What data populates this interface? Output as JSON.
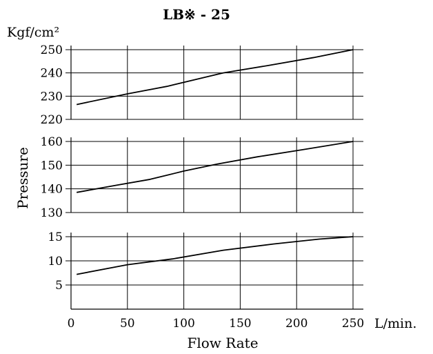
{
  "chart_data": {
    "type": "line",
    "title": "LB※ - 25",
    "y_unit": "Kgf/cm²",
    "ylabel": "Pressure",
    "xlabel": "Flow Rate",
    "x_unit": "L/min.",
    "xlim": [
      0,
      250
    ],
    "x_ticks": [
      0,
      50,
      100,
      150,
      200,
      250
    ],
    "grid": true,
    "panels": [
      {
        "ylim": [
          220,
          250
        ],
        "y_ticks": [
          220,
          230,
          240,
          250
        ],
        "series": [
          {
            "x": [
              5,
              50,
              85,
              135,
              175,
              215,
              250
            ],
            "y": [
              226.4,
              231,
              234.2,
              240,
              243.2,
              246.6,
              250
            ]
          }
        ]
      },
      {
        "ylim": [
          130,
          160
        ],
        "y_ticks": [
          130,
          140,
          150,
          160
        ],
        "series": [
          {
            "x": [
              5,
              40,
              70,
              100,
              130,
              165,
              205,
              250
            ],
            "y": [
              138.5,
              141.5,
              144,
              147.5,
              150.5,
              153.5,
              156.5,
              160
            ]
          }
        ]
      },
      {
        "ylim": [
          0,
          15
        ],
        "y_ticks": [
          5,
          10,
          15
        ],
        "series": [
          {
            "x": [
              5,
              50,
              90,
              135,
              180,
              220,
              250
            ],
            "y": [
              7.2,
              9.2,
              10.4,
              12.2,
              13.5,
              14.5,
              15
            ]
          }
        ]
      }
    ]
  }
}
